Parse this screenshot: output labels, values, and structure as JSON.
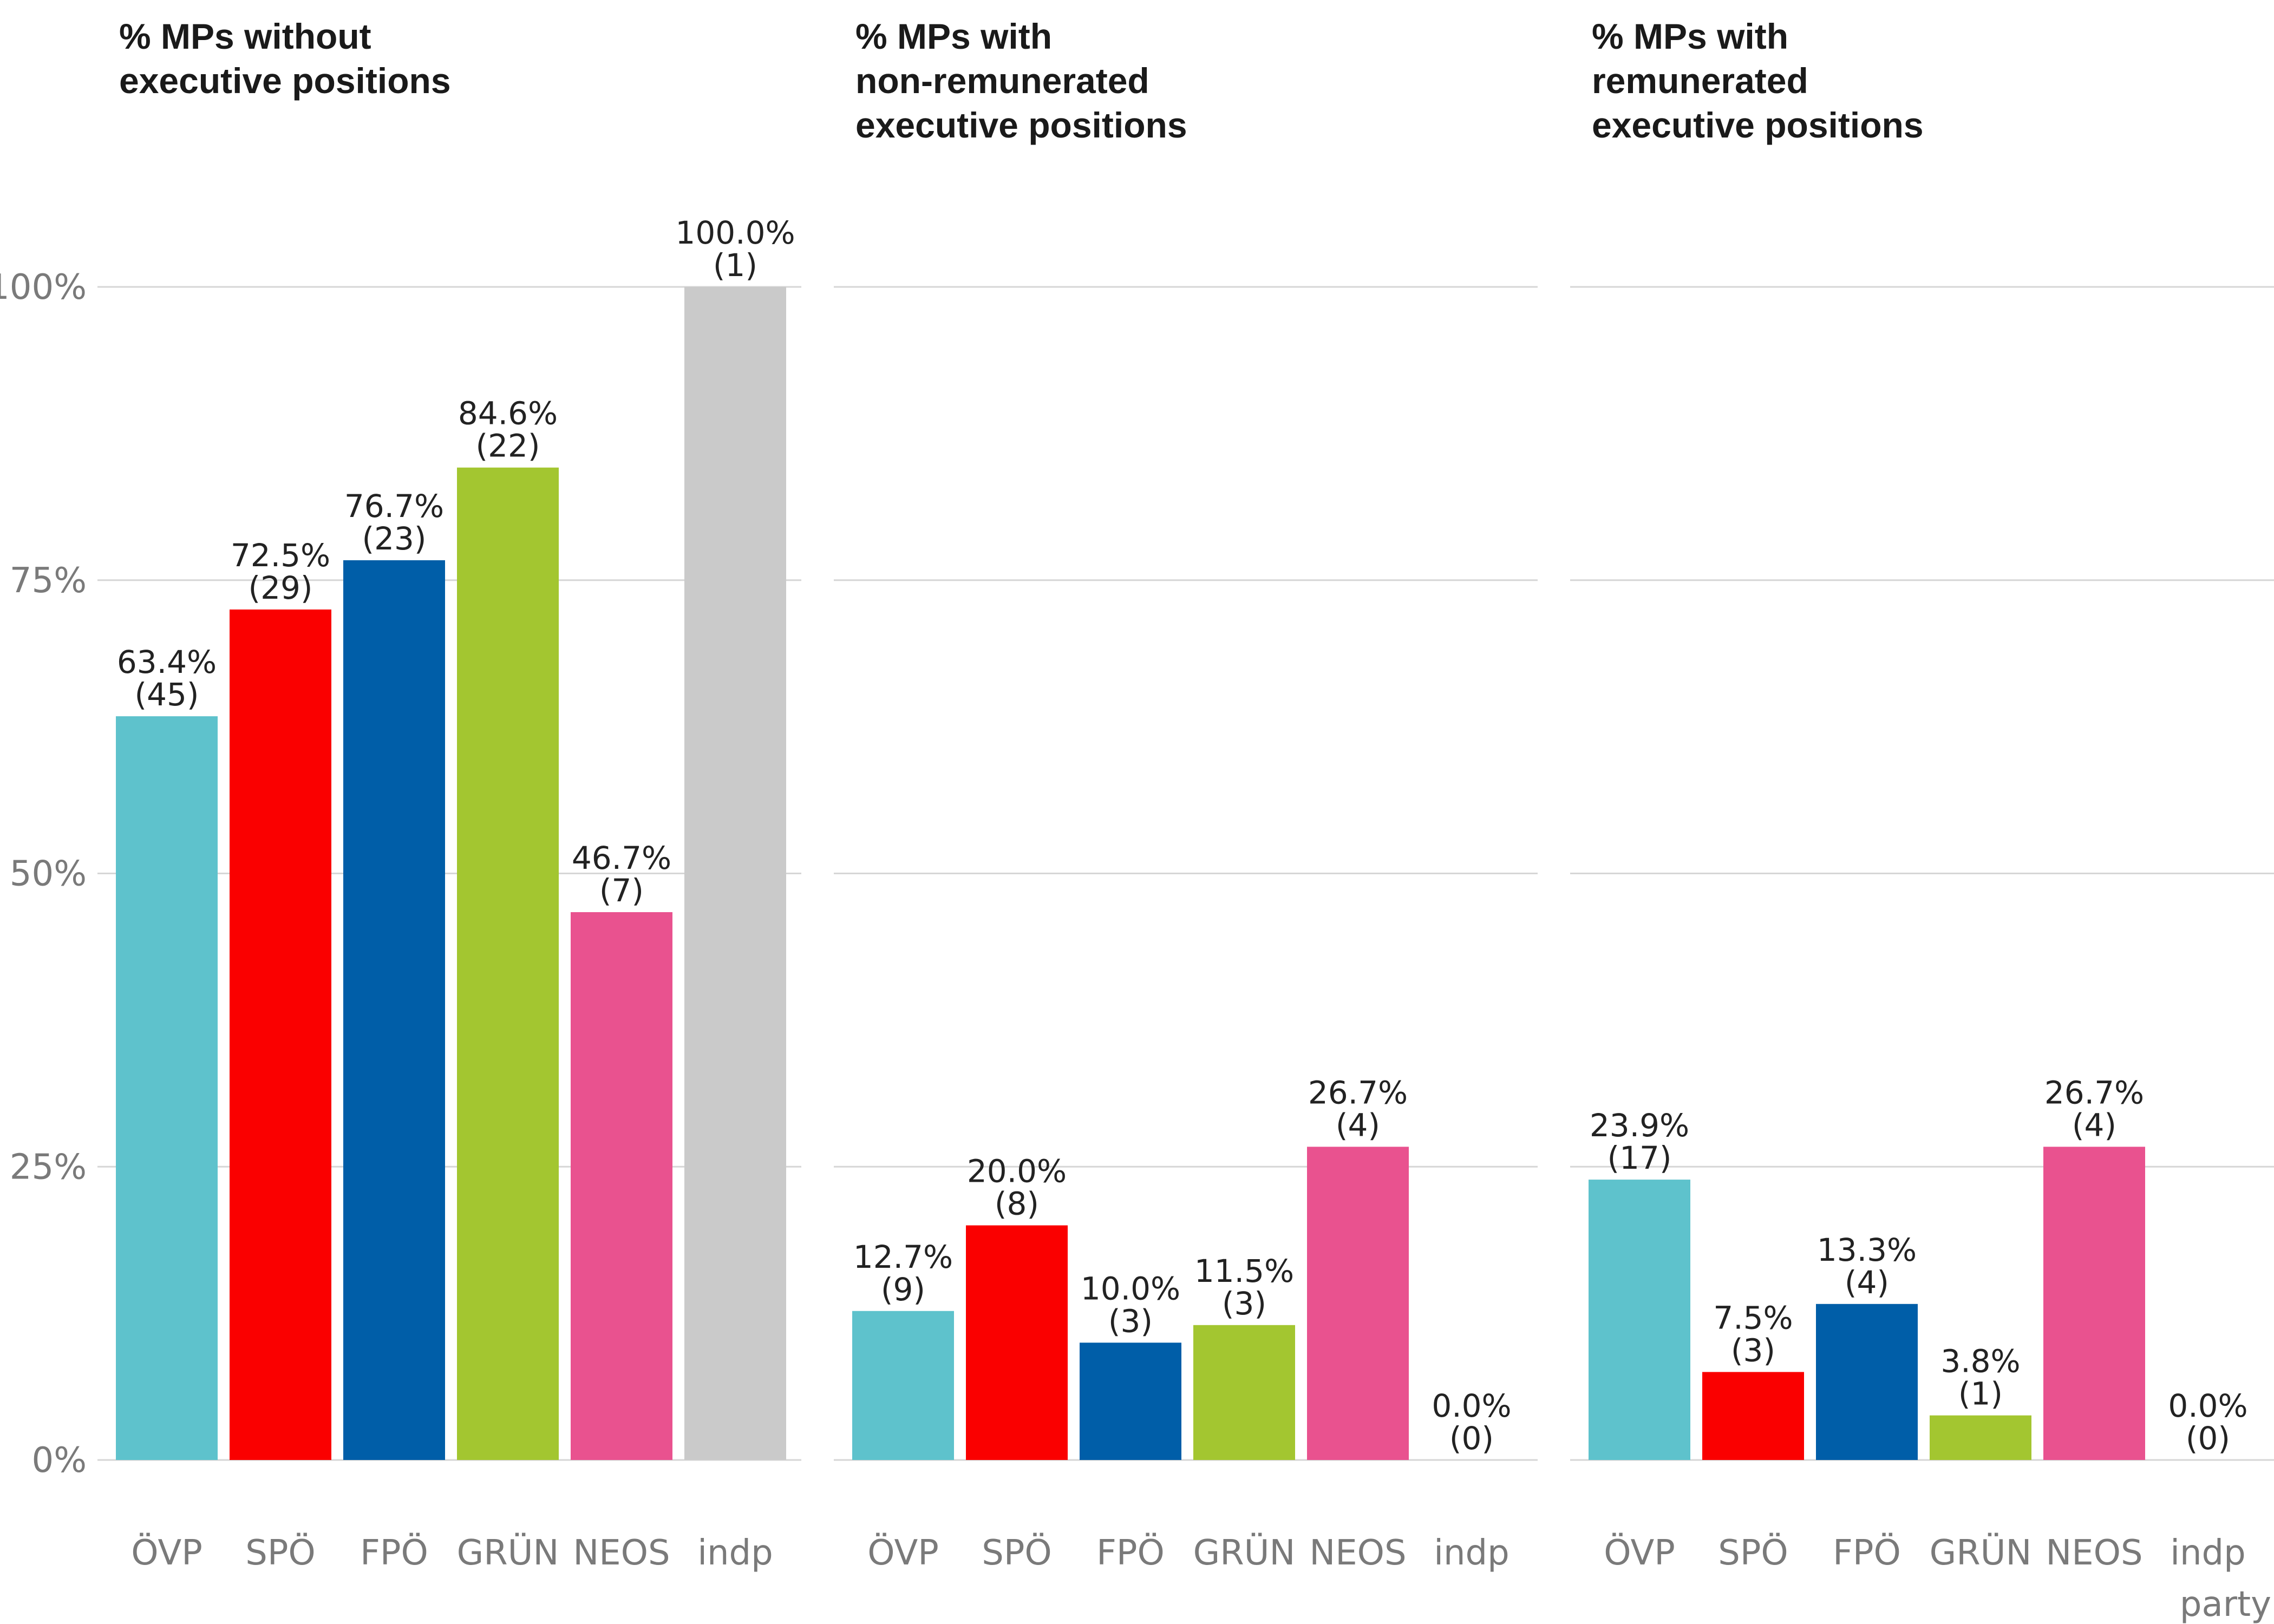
{
  "chart_data": {
    "type": "bar",
    "xlabel": "party",
    "ylabel": "",
    "ylim": [
      0,
      100
    ],
    "yticks": [
      0,
      25,
      50,
      75,
      100
    ],
    "ytick_labels": [
      "0%",
      "25%",
      "50%",
      "75%",
      "100%"
    ],
    "grid": true,
    "categories": [
      "ÖVP",
      "SPÖ",
      "FPÖ",
      "GRÜN",
      "NEOS",
      "indp"
    ],
    "colors": {
      "ÖVP": "#5ec2cc",
      "SPÖ": "#fa0000",
      "FPÖ": "#005ea8",
      "GRÜN": "#a3c630",
      "NEOS": "#e9528f",
      "indp": "#cacaca"
    },
    "panels": [
      {
        "title_lines": [
          "% MPs without",
          "executive positions"
        ],
        "values": [
          63.4,
          72.5,
          76.7,
          84.6,
          46.7,
          100.0
        ],
        "value_labels": [
          "63.4%",
          "72.5%",
          "76.7%",
          "84.6%",
          "46.7%",
          "100.0%"
        ],
        "counts": [
          "(45)",
          "(29)",
          "(23)",
          "(22)",
          "(7)",
          "(1)"
        ]
      },
      {
        "title_lines": [
          "% MPs with",
          "non-remunerated",
          "executive positions"
        ],
        "values": [
          12.7,
          20.0,
          10.0,
          11.5,
          26.7,
          0.0
        ],
        "value_labels": [
          "12.7%",
          "20.0%",
          "10.0%",
          "11.5%",
          "26.7%",
          "0.0%"
        ],
        "counts": [
          "(9)",
          "(8)",
          "(3)",
          "(3)",
          "(4)",
          "(0)"
        ]
      },
      {
        "title_lines": [
          "% MPs with",
          "remunerated",
          "executive positions"
        ],
        "values": [
          23.9,
          7.5,
          13.3,
          3.8,
          26.7,
          0.0
        ],
        "value_labels": [
          "23.9%",
          "7.5%",
          "13.3%",
          "3.8%",
          "26.7%",
          "0.0%"
        ],
        "counts": [
          "(17)",
          "(3)",
          "(4)",
          "(1)",
          "(4)",
          "(0)"
        ]
      }
    ]
  }
}
